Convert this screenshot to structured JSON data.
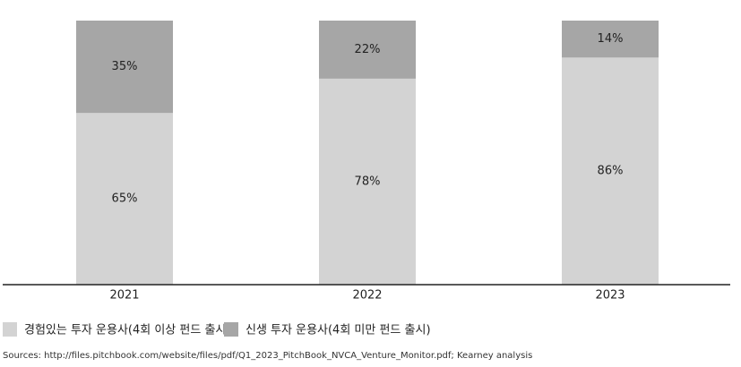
{
  "chart_data": {
    "type": "stacked-bar",
    "categories": [
      "2021",
      "2022",
      "2023"
    ],
    "series": [
      {
        "name": "경험있는 투자 운용사(4회 이상 펀드 출시)",
        "color": "#d3d3d3",
        "values": [
          65,
          78,
          86
        ],
        "value_labels": [
          "65%",
          "78%",
          "86%"
        ]
      },
      {
        "name": "신생 투자 운용사(4회 미만 펀드 출시)",
        "color": "#a6a6a6",
        "values": [
          35,
          22,
          14
        ],
        "value_labels": [
          "35%",
          "22%",
          "14%"
        ]
      }
    ],
    "source": "Sources: http://files.pitchbook.com/website/files/pdf/Q1_2023_PitchBook_NVCA_Venture_Monitor.pdf; Kearney analysis"
  }
}
